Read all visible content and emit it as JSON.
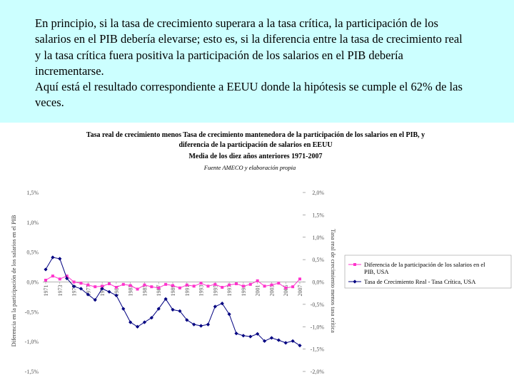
{
  "text": {
    "paragraph1": "En principio, si la tasa de crecimiento superara a la tasa crítica, la participación de los salarios en el PIB debería elevarse; esto es, si la diferencia entre la tasa de crecimiento real y la tasa crítica fuera positiva la participación de los salarios en el PIB debería incrementarse.",
    "paragraph2": "Aquí está el resultado correspondiente a EEUU donde la hipótesis se cumple el 62% de las veces."
  },
  "chart_data": {
    "type": "line",
    "title_line1": "Tasa real de crecimiento menos Tasa de crecimiento mantenedora de la participación de los salarios en el PIB, y",
    "title_line2": "diferencia de la participación de salarios en EEUU",
    "title_line3": "Media de los diez años anteriores 1971-2007",
    "source": "Fuente AMECO y elaboración propia",
    "ylabel_left": "Diferencia en la participación de los salarios en el PIB",
    "ylabel_right": "Tasa real de crecimiento menos tasa crítica",
    "left_ticks": [
      "1,5%",
      "1,0%",
      "0,5%",
      "0,0%",
      "-0,5%",
      "-1,0%",
      "-1,5%"
    ],
    "right_ticks": [
      "2,0%",
      "1,5%",
      "1,0%",
      "0,5%",
      "0,0%",
      "-0,5%",
      "-1,0%",
      "-1,5%",
      "-2,0%"
    ],
    "ylim_left": [
      -1.5,
      1.5
    ],
    "ylim_right": [
      -2.0,
      2.0
    ],
    "x_tick_labels": [
      "1971",
      "1973",
      "1975",
      "1977",
      "1979",
      "1981",
      "1983",
      "1985",
      "1987",
      "1989",
      "1991",
      "1993",
      "1995",
      "1997",
      "1999",
      "2001",
      "2003",
      "2005",
      "2007"
    ],
    "x": [
      1971,
      1972,
      1973,
      1974,
      1975,
      1976,
      1977,
      1978,
      1979,
      1980,
      1981,
      1982,
      1983,
      1984,
      1985,
      1986,
      1987,
      1988,
      1989,
      1990,
      1991,
      1992,
      1993,
      1994,
      1995,
      1996,
      1997,
      1998,
      1999,
      2000,
      2001,
      2002,
      2003,
      2004,
      2005,
      2006,
      2007
    ],
    "series": [
      {
        "name": "Diferencia de la participación de los salarios en el PIB, USA",
        "axis": "left",
        "color": "#ff33cc",
        "marker": "square",
        "values": [
          0.03,
          0.1,
          0.05,
          0.1,
          0.0,
          -0.02,
          -0.05,
          -0.08,
          -0.07,
          -0.03,
          -0.09,
          -0.04,
          -0.06,
          -0.12,
          -0.05,
          -0.08,
          -0.1,
          -0.04,
          -0.06,
          -0.1,
          -0.05,
          -0.07,
          -0.02,
          -0.07,
          -0.04,
          -0.09,
          -0.05,
          -0.03,
          -0.07,
          -0.04,
          0.02,
          -0.07,
          -0.05,
          -0.02,
          -0.1,
          -0.08,
          0.05
        ]
      },
      {
        "name": "Tasa de Crecimiento Real - Tasa Crítica, USA",
        "axis": "right",
        "color": "#000080",
        "marker": "diamond",
        "values": [
          0.28,
          0.55,
          0.52,
          0.08,
          -0.1,
          -0.15,
          -0.28,
          -0.4,
          -0.15,
          -0.22,
          -0.3,
          -0.6,
          -0.9,
          -1.0,
          -0.9,
          -0.8,
          -0.6,
          -0.38,
          -0.62,
          -0.65,
          -0.85,
          -0.95,
          -0.98,
          -0.95,
          -0.55,
          -0.48,
          -0.72,
          -1.15,
          -1.2,
          -1.22,
          -1.16,
          -1.32,
          -1.25,
          -1.3,
          -1.36,
          -1.32,
          -1.42
        ]
      }
    ]
  }
}
